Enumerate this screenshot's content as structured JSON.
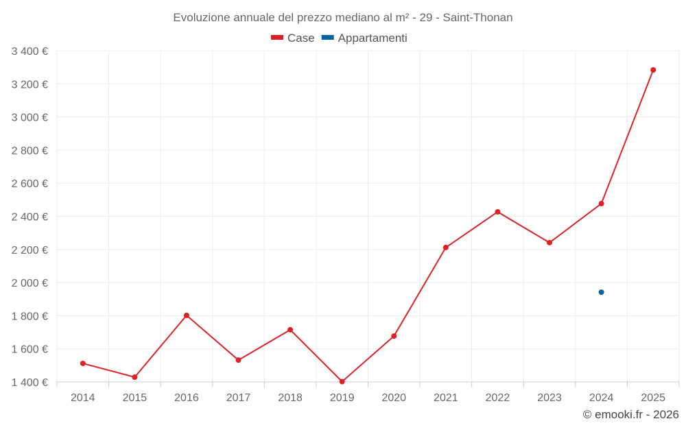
{
  "chart_data": {
    "type": "line",
    "title": "Evoluzione annuale del prezzo mediano al m² - 29 - Saint-Thonan",
    "categories": [
      "2014",
      "2015",
      "2016",
      "2017",
      "2018",
      "2019",
      "2020",
      "2021",
      "2022",
      "2023",
      "2024",
      "2025"
    ],
    "series": [
      {
        "name": "Case",
        "color": "#dc2127",
        "values": [
          1512,
          1429,
          1802,
          1532,
          1715,
          1402,
          1677,
          2212,
          2427,
          2241,
          2477,
          3284
        ]
      },
      {
        "name": "Appartamenti",
        "color": "#0a64a0",
        "values": [
          null,
          null,
          null,
          null,
          null,
          null,
          null,
          null,
          null,
          null,
          1942,
          null
        ]
      }
    ],
    "ylim": [
      1400,
      3400
    ],
    "yticks": [
      1400,
      1600,
      1800,
      2000,
      2200,
      2400,
      2600,
      2800,
      3000,
      3200,
      3400
    ],
    "ytick_labels": [
      "1 400 €",
      "1 600 €",
      "1 800 €",
      "2 000 €",
      "2 200 €",
      "2 400 €",
      "2 600 €",
      "2 800 €",
      "3 000 €",
      "3 200 €",
      "3 400 €"
    ],
    "xlabel": "",
    "ylabel": "",
    "grid": true,
    "legend_position": "top-center"
  },
  "credit": "© emooki.fr - 2026"
}
